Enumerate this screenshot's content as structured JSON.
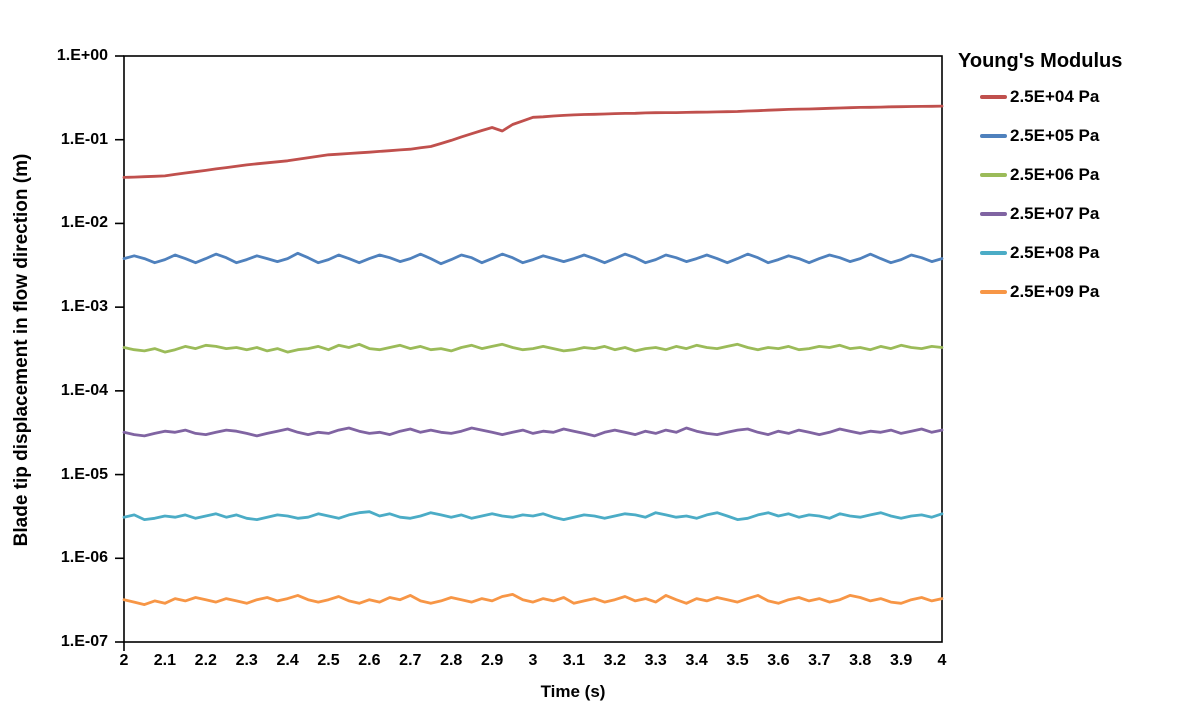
{
  "page": {
    "background": "#ffffff",
    "text_color": "#000000"
  },
  "chart_data": {
    "type": "line",
    "title": "",
    "legend_title": "Young's Modulus",
    "xlabel": "Time (s)",
    "ylabel": "Blade tip displacement in flow direction (m)",
    "x_scale": "linear",
    "y_scale": "log",
    "xlim": [
      2,
      4
    ],
    "ylim": [
      1e-07,
      1
    ],
    "grid": false,
    "legend_position": "right",
    "x_ticks": [
      2,
      2.1,
      2.2,
      2.3,
      2.4,
      2.5,
      2.6,
      2.7,
      2.8,
      2.9,
      3,
      3.1,
      3.2,
      3.3,
      3.4,
      3.5,
      3.6,
      3.7,
      3.8,
      3.9,
      4
    ],
    "x_tick_labels": [
      "2",
      "2.1",
      "2.2",
      "2.3",
      "2.4",
      "2.5",
      "2.6",
      "2.7",
      "2.8",
      "2.9",
      "3",
      "3.1",
      "3.2",
      "3.3",
      "3.4",
      "3.5",
      "3.6",
      "3.7",
      "3.8",
      "3.9",
      "4"
    ],
    "y_tick_values": [
      1,
      0.1,
      0.01,
      0.001,
      0.0001,
      1e-05,
      1e-06,
      1e-07
    ],
    "y_tick_labels": [
      "1.E+00",
      "1.E-01",
      "1.E-02",
      "1.E-03",
      "1.E-04",
      "1.E-05",
      "1.E-06",
      "1.E-07"
    ],
    "x_start": 2,
    "x_step": 0.025,
    "series": [
      {
        "name": "2.5E+04 Pa",
        "color": "#C0504D",
        "values": [
          0.0355,
          0.0358,
          0.0362,
          0.0366,
          0.037,
          0.0385,
          0.04,
          0.0415,
          0.043,
          0.0448,
          0.0465,
          0.0483,
          0.05,
          0.0515,
          0.053,
          0.0545,
          0.056,
          0.0585,
          0.061,
          0.0635,
          0.066,
          0.0672,
          0.0685,
          0.0697,
          0.071,
          0.0725,
          0.074,
          0.0755,
          0.077,
          0.08,
          0.083,
          0.09,
          0.098,
          0.108,
          0.118,
          0.129,
          0.14,
          0.127,
          0.152,
          0.168,
          0.185,
          0.188,
          0.192,
          0.195,
          0.198,
          0.2,
          0.201,
          0.203,
          0.205,
          0.206,
          0.207,
          0.209,
          0.21,
          0.211,
          0.211,
          0.212,
          0.213,
          0.214,
          0.215,
          0.216,
          0.217,
          0.22,
          0.222,
          0.225,
          0.228,
          0.23,
          0.232,
          0.233,
          0.235,
          0.237,
          0.239,
          0.241,
          0.243,
          0.244,
          0.245,
          0.247,
          0.248,
          0.249,
          0.25,
          0.251,
          0.252
        ]
      },
      {
        "name": "2.5E+05 Pa",
        "color": "#4F81BD",
        "values": [
          0.0038,
          0.0041,
          0.0038,
          0.0034,
          0.0037,
          0.0042,
          0.0038,
          0.0034,
          0.0038,
          0.0043,
          0.0039,
          0.0034,
          0.0037,
          0.0041,
          0.0038,
          0.0035,
          0.0038,
          0.0044,
          0.0039,
          0.0034,
          0.0037,
          0.0042,
          0.0038,
          0.0034,
          0.0038,
          0.0042,
          0.0039,
          0.0035,
          0.0038,
          0.0043,
          0.0038,
          0.0033,
          0.0037,
          0.0042,
          0.0039,
          0.0034,
          0.0038,
          0.0043,
          0.0039,
          0.0034,
          0.0037,
          0.0041,
          0.0038,
          0.0035,
          0.0038,
          0.0042,
          0.0038,
          0.0034,
          0.0038,
          0.0043,
          0.0039,
          0.0034,
          0.0037,
          0.0042,
          0.0039,
          0.0035,
          0.0038,
          0.0042,
          0.0038,
          0.0034,
          0.0038,
          0.0043,
          0.0039,
          0.0034,
          0.0037,
          0.0041,
          0.0038,
          0.0034,
          0.0038,
          0.0042,
          0.0039,
          0.0035,
          0.0038,
          0.0043,
          0.0038,
          0.0034,
          0.0037,
          0.0042,
          0.0039,
          0.0035,
          0.0038
        ]
      },
      {
        "name": "2.5E+06 Pa",
        "color": "#9BBB59",
        "values": [
          0.00033,
          0.00031,
          0.0003,
          0.00032,
          0.00029,
          0.00031,
          0.00034,
          0.00032,
          0.00035,
          0.00034,
          0.00032,
          0.00033,
          0.00031,
          0.00033,
          0.0003,
          0.00032,
          0.00029,
          0.00031,
          0.00032,
          0.00034,
          0.00031,
          0.00035,
          0.00033,
          0.00036,
          0.00032,
          0.00031,
          0.00033,
          0.00035,
          0.00032,
          0.00034,
          0.00031,
          0.00032,
          0.0003,
          0.00033,
          0.00035,
          0.00032,
          0.00034,
          0.00036,
          0.00033,
          0.00031,
          0.00032,
          0.00034,
          0.00032,
          0.0003,
          0.00031,
          0.00033,
          0.00032,
          0.00034,
          0.00031,
          0.00033,
          0.0003,
          0.00032,
          0.00033,
          0.00031,
          0.00034,
          0.00032,
          0.00035,
          0.00033,
          0.00032,
          0.00034,
          0.00036,
          0.00033,
          0.00031,
          0.00033,
          0.00032,
          0.00034,
          0.00031,
          0.00032,
          0.00034,
          0.00033,
          0.00035,
          0.00032,
          0.00033,
          0.00031,
          0.00034,
          0.00032,
          0.00035,
          0.00033,
          0.00032,
          0.00034,
          0.00033
        ]
      },
      {
        "name": "2.5E+07 Pa",
        "color": "#8064A2",
        "values": [
          3.2e-05,
          3e-05,
          2.9e-05,
          3.1e-05,
          3.3e-05,
          3.2e-05,
          3.4e-05,
          3.1e-05,
          3e-05,
          3.2e-05,
          3.4e-05,
          3.3e-05,
          3.1e-05,
          2.9e-05,
          3.1e-05,
          3.3e-05,
          3.5e-05,
          3.2e-05,
          3e-05,
          3.2e-05,
          3.1e-05,
          3.4e-05,
          3.6e-05,
          3.3e-05,
          3.1e-05,
          3.2e-05,
          3e-05,
          3.3e-05,
          3.5e-05,
          3.2e-05,
          3.4e-05,
          3.2e-05,
          3.1e-05,
          3.3e-05,
          3.6e-05,
          3.4e-05,
          3.2e-05,
          3e-05,
          3.2e-05,
          3.4e-05,
          3.1e-05,
          3.3e-05,
          3.2e-05,
          3.5e-05,
          3.3e-05,
          3.1e-05,
          2.9e-05,
          3.2e-05,
          3.4e-05,
          3.2e-05,
          3e-05,
          3.3e-05,
          3.1e-05,
          3.4e-05,
          3.2e-05,
          3.6e-05,
          3.3e-05,
          3.1e-05,
          3e-05,
          3.2e-05,
          3.4e-05,
          3.5e-05,
          3.2e-05,
          3e-05,
          3.3e-05,
          3.1e-05,
          3.4e-05,
          3.2e-05,
          3e-05,
          3.2e-05,
          3.5e-05,
          3.3e-05,
          3.1e-05,
          3.3e-05,
          3.2e-05,
          3.4e-05,
          3.1e-05,
          3.3e-05,
          3.5e-05,
          3.2e-05,
          3.4e-05
        ]
      },
      {
        "name": "2.5E+08 Pa",
        "color": "#4BACC6",
        "values": [
          3.1e-06,
          3.3e-06,
          2.9e-06,
          3e-06,
          3.2e-06,
          3.1e-06,
          3.3e-06,
          3e-06,
          3.2e-06,
          3.4e-06,
          3.1e-06,
          3.3e-06,
          3e-06,
          2.9e-06,
          3.1e-06,
          3.3e-06,
          3.2e-06,
          3e-06,
          3.1e-06,
          3.4e-06,
          3.2e-06,
          3e-06,
          3.3e-06,
          3.5e-06,
          3.6e-06,
          3.2e-06,
          3.4e-06,
          3.1e-06,
          3e-06,
          3.2e-06,
          3.5e-06,
          3.3e-06,
          3.1e-06,
          3.3e-06,
          3e-06,
          3.2e-06,
          3.4e-06,
          3.2e-06,
          3.1e-06,
          3.3e-06,
          3.2e-06,
          3.4e-06,
          3.1e-06,
          2.9e-06,
          3.1e-06,
          3.3e-06,
          3.2e-06,
          3e-06,
          3.2e-06,
          3.4e-06,
          3.3e-06,
          3.1e-06,
          3.5e-06,
          3.3e-06,
          3.1e-06,
          3.2e-06,
          3e-06,
          3.3e-06,
          3.5e-06,
          3.2e-06,
          2.9e-06,
          3e-06,
          3.3e-06,
          3.5e-06,
          3.2e-06,
          3.4e-06,
          3.1e-06,
          3.3e-06,
          3.2e-06,
          3e-06,
          3.4e-06,
          3.2e-06,
          3.1e-06,
          3.3e-06,
          3.5e-06,
          3.2e-06,
          3e-06,
          3.2e-06,
          3.3e-06,
          3.1e-06,
          3.4e-06
        ]
      },
      {
        "name": "2.5E+09 Pa",
        "color": "#F79646",
        "values": [
          3.2e-07,
          3e-07,
          2.8e-07,
          3.1e-07,
          2.9e-07,
          3.3e-07,
          3.1e-07,
          3.4e-07,
          3.2e-07,
          3e-07,
          3.3e-07,
          3.1e-07,
          2.9e-07,
          3.2e-07,
          3.4e-07,
          3.1e-07,
          3.3e-07,
          3.6e-07,
          3.2e-07,
          3e-07,
          3.2e-07,
          3.5e-07,
          3.1e-07,
          2.9e-07,
          3.2e-07,
          3e-07,
          3.4e-07,
          3.2e-07,
          3.6e-07,
          3.1e-07,
          2.9e-07,
          3.1e-07,
          3.4e-07,
          3.2e-07,
          3e-07,
          3.3e-07,
          3.1e-07,
          3.5e-07,
          3.7e-07,
          3.2e-07,
          3e-07,
          3.3e-07,
          3.1e-07,
          3.4e-07,
          2.9e-07,
          3.1e-07,
          3.3e-07,
          3e-07,
          3.2e-07,
          3.5e-07,
          3.1e-07,
          3.3e-07,
          3e-07,
          3.6e-07,
          3.2e-07,
          2.9e-07,
          3.3e-07,
          3.1e-07,
          3.4e-07,
          3.2e-07,
          3e-07,
          3.3e-07,
          3.6e-07,
          3.1e-07,
          2.9e-07,
          3.2e-07,
          3.4e-07,
          3.1e-07,
          3.3e-07,
          3e-07,
          3.2e-07,
          3.6e-07,
          3.4e-07,
          3.1e-07,
          3.3e-07,
          3e-07,
          2.9e-07,
          3.2e-07,
          3.4e-07,
          3.1e-07,
          3.3e-07
        ]
      }
    ]
  }
}
